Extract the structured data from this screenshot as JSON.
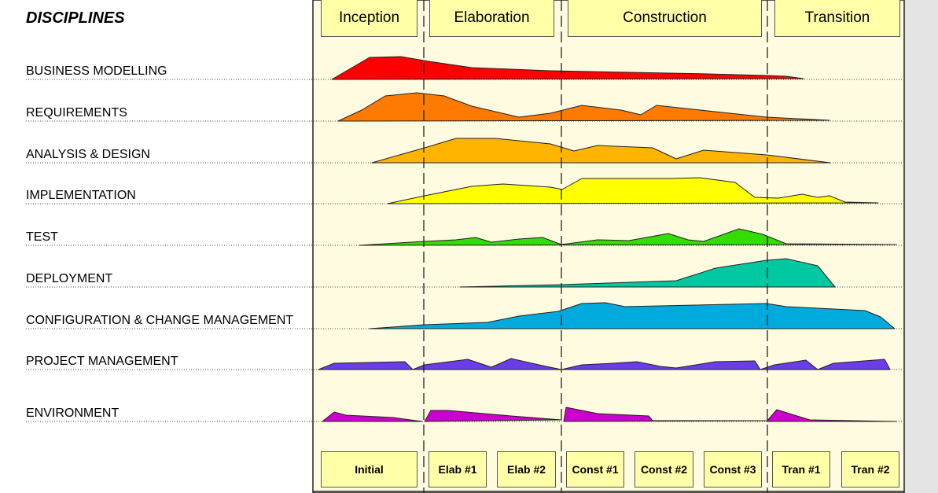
{
  "title": "DISCIPLINES",
  "phases": [
    "Inception",
    "Elaboration",
    "Construction",
    "Transition"
  ],
  "iterations": [
    "Initial",
    "Elab #1",
    "Elab #2",
    "Const #1",
    "Const #2",
    "Const #3",
    "Tran #1",
    "Tran #2"
  ],
  "disciplines": [
    {
      "label": "BUSINESS MODELLING",
      "color": "#ff0000"
    },
    {
      "label": "REQUIREMENTS",
      "color": "#ff7a00"
    },
    {
      "label": "ANALYSIS & DESIGN",
      "color": "#ffb400"
    },
    {
      "label": "IMPLEMENTATION",
      "color": "#ffff00"
    },
    {
      "label": "TEST",
      "color": "#33dd00"
    },
    {
      "label": "DEPLOYMENT",
      "color": "#00c8a0"
    },
    {
      "label": "CONFIGURATION & CHANGE MANAGEMENT",
      "color": "#00aadd"
    },
    {
      "label": "PROJECT MANAGEMENT",
      "color": "#6a3de8"
    },
    {
      "label": "ENVIRONMENT",
      "color": "#cc00cc"
    }
  ],
  "colors": {
    "background": "#fffbe0",
    "box": "#ffffa8"
  }
}
